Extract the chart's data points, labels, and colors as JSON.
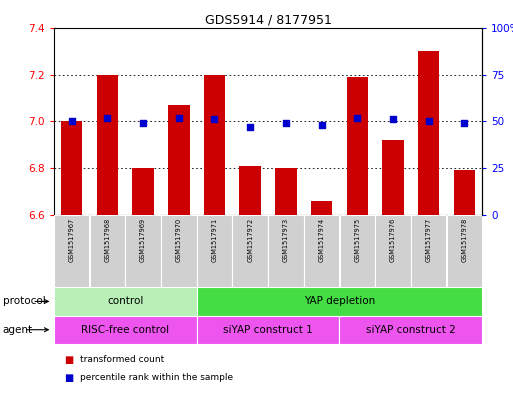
{
  "title": "GDS5914 / 8177951",
  "samples": [
    "GSM1517967",
    "GSM1517968",
    "GSM1517969",
    "GSM1517970",
    "GSM1517971",
    "GSM1517972",
    "GSM1517973",
    "GSM1517974",
    "GSM1517975",
    "GSM1517976",
    "GSM1517977",
    "GSM1517978"
  ],
  "transformed_counts": [
    7.0,
    7.2,
    6.8,
    7.07,
    7.2,
    6.81,
    6.8,
    6.66,
    7.19,
    6.92,
    7.3,
    6.79
  ],
  "percentile_ranks": [
    50,
    52,
    49,
    52,
    51,
    47,
    49,
    48,
    52,
    51,
    50,
    49
  ],
  "ylim_left": [
    6.6,
    7.4
  ],
  "ylim_right": [
    0,
    100
  ],
  "yticks_left": [
    6.6,
    6.8,
    7.0,
    7.2,
    7.4
  ],
  "yticks_right": [
    0,
    25,
    50,
    75,
    100
  ],
  "ytick_labels_right": [
    "0",
    "25",
    "50",
    "75",
    "100%"
  ],
  "bar_color": "#cc0000",
  "dot_color": "#0000cc",
  "protocol_labels": [
    "control",
    "YAP depletion"
  ],
  "protocol_colors": [
    "#b8f0b8",
    "#44dd44"
  ],
  "protocol_ranges": [
    [
      0,
      4
    ],
    [
      4,
      12
    ]
  ],
  "agent_labels": [
    "RISC-free control",
    "siYAP construct 1",
    "siYAP construct 2"
  ],
  "agent_color": "#ee55ee",
  "agent_ranges": [
    [
      0,
      4
    ],
    [
      4,
      8
    ],
    [
      8,
      12
    ]
  ],
  "legend_items": [
    "transformed count",
    "percentile rank within the sample"
  ],
  "xlabel_protocol": "protocol",
  "xlabel_agent": "agent"
}
